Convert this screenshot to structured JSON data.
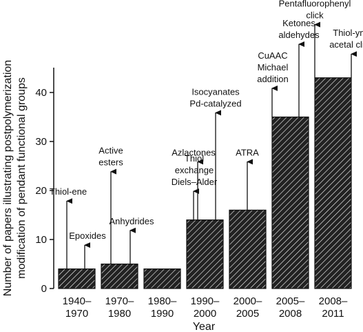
{
  "chart_data": {
    "type": "bar",
    "xlabel": "Year",
    "ylabel": "Number of papers illustrating postpolymerization modification of pendant functional groups",
    "ylabel_lines": [
      "Number of papers illustrating postpolymerization",
      "modification of pendant functional groups"
    ],
    "ylim": [
      0,
      45
    ],
    "yticks": [
      0,
      10,
      20,
      30,
      40
    ],
    "bar_fill": "hatched",
    "categories": [
      {
        "line1": "1940–",
        "line2": "1970"
      },
      {
        "line1": "1970–",
        "line2": "1980"
      },
      {
        "line1": "1980–",
        "line2": "1990"
      },
      {
        "line1": "1990–",
        "line2": "2000"
      },
      {
        "line1": "2000–",
        "line2": "2005"
      },
      {
        "line1": "2005–",
        "line2": "2008"
      },
      {
        "line1": "2008–",
        "line2": "2011"
      }
    ],
    "values": [
      4,
      5,
      4,
      14,
      16,
      35,
      43
    ],
    "annotations": [
      {
        "bar": 0,
        "arrow_top": 18,
        "lines": [
          "Thiol-ene"
        ]
      },
      {
        "bar": 0,
        "arrow_top": 9,
        "lines": [
          "Epoxides"
        ]
      },
      {
        "bar": 1,
        "arrow_top": 24,
        "lines": [
          "Active",
          "esters"
        ]
      },
      {
        "bar": 1,
        "arrow_top": 12,
        "lines": [
          "Anhydrides"
        ]
      },
      {
        "bar": 3,
        "arrow_top": 26,
        "lines": [
          "Azlactones"
        ]
      },
      {
        "bar": 3,
        "arrow_top": 36,
        "lines": [
          "Isocyanates",
          "Pd-catalyzed"
        ]
      },
      {
        "bar": 3,
        "arrow_top": 20,
        "lines": [
          "Thiol",
          "exchange",
          "Diels–Alder"
        ]
      },
      {
        "bar": 4,
        "arrow_top": 26,
        "lines": [
          "ATRA"
        ]
      },
      {
        "bar": 5,
        "arrow_top": 41,
        "lines": [
          "CuAAC",
          "Michael",
          "addition"
        ]
      },
      {
        "bar": 5,
        "arrow_top": 50,
        "lines": [
          "Ketones",
          "aldehydes"
        ]
      },
      {
        "bar": 6,
        "arrow_top": 54,
        "lines": [
          "Pentafluorophenyl",
          "click"
        ]
      },
      {
        "bar": 6,
        "arrow_top": 48,
        "lines": [
          "Thiol-yne",
          "acetal click"
        ]
      }
    ]
  }
}
